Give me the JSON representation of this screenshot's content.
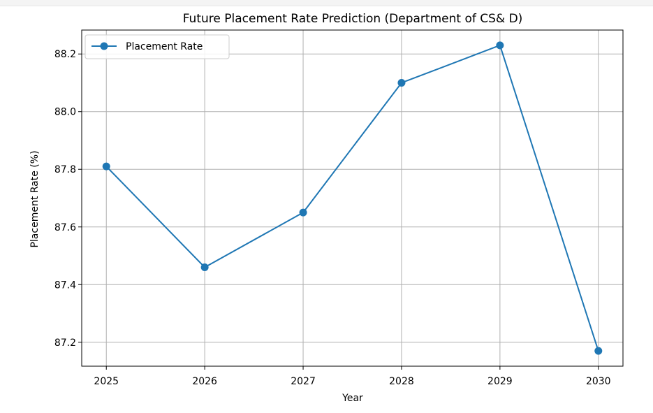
{
  "chart_data": {
    "type": "line",
    "title": "Future Placement Rate Prediction (Department of CS& D)",
    "xlabel": "Year",
    "ylabel": "Placement Rate (%)",
    "x": [
      2025,
      2026,
      2027,
      2028,
      2029,
      2030
    ],
    "x_tick_labels": [
      "2025",
      "2026",
      "2027",
      "2028",
      "2029",
      "2030"
    ],
    "series": [
      {
        "name": "Placement Rate",
        "values": [
          87.81,
          87.46,
          87.65,
          88.1,
          88.23,
          87.17
        ],
        "color": "#1f77b4",
        "marker": "circle"
      }
    ],
    "y_ticks": [
      87.2,
      87.4,
      87.6,
      87.8,
      88.0,
      88.2
    ],
    "y_tick_labels": [
      "87.2",
      "87.4",
      "87.6",
      "87.8",
      "88.0",
      "88.2"
    ],
    "xlim": [
      2024.75,
      2030.25
    ],
    "ylim": [
      87.117,
      88.283
    ],
    "grid": true,
    "legend_position": "top-left"
  }
}
